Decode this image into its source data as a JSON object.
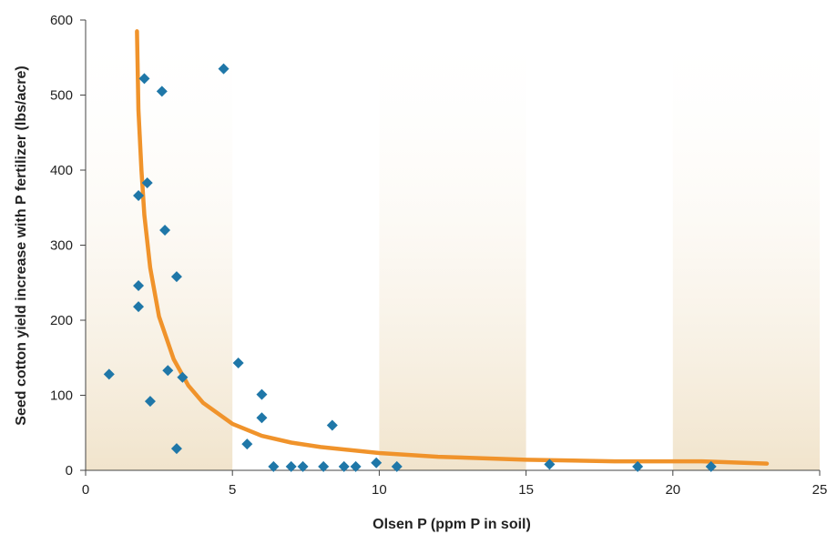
{
  "chart_data": {
    "type": "scatter",
    "xlabel": "Olsen P (ppm P in soil)",
    "ylabel": "Seed cotton yield increase with P fertilizer (lbs/acre)",
    "xlim": [
      0,
      25
    ],
    "ylim": [
      0,
      600
    ],
    "xticks": [
      0,
      5,
      10,
      15,
      20,
      25
    ],
    "yticks": [
      0,
      100,
      200,
      300,
      400,
      500,
      600
    ],
    "grid": false,
    "background_bands": "alternating beige and white vertical bands every 5 ppm",
    "colors": {
      "points": "#1f77a8",
      "curve": "#f0932b",
      "band": "#f1e7d6",
      "axis": "#444444"
    },
    "points": [
      {
        "x": 0.8,
        "y": 128
      },
      {
        "x": 1.8,
        "y": 366
      },
      {
        "x": 1.8,
        "y": 246
      },
      {
        "x": 1.8,
        "y": 218
      },
      {
        "x": 2.0,
        "y": 522
      },
      {
        "x": 2.1,
        "y": 383
      },
      {
        "x": 2.2,
        "y": 92
      },
      {
        "x": 2.6,
        "y": 505
      },
      {
        "x": 2.7,
        "y": 320
      },
      {
        "x": 2.8,
        "y": 133
      },
      {
        "x": 3.1,
        "y": 258
      },
      {
        "x": 3.1,
        "y": 29
      },
      {
        "x": 3.3,
        "y": 124
      },
      {
        "x": 4.7,
        "y": 535
      },
      {
        "x": 5.2,
        "y": 143
      },
      {
        "x": 5.5,
        "y": 35
      },
      {
        "x": 6.0,
        "y": 101
      },
      {
        "x": 6.0,
        "y": 70
      },
      {
        "x": 6.4,
        "y": 5
      },
      {
        "x": 7.0,
        "y": 5
      },
      {
        "x": 7.4,
        "y": 5
      },
      {
        "x": 8.1,
        "y": 5
      },
      {
        "x": 8.4,
        "y": 60
      },
      {
        "x": 8.8,
        "y": 5
      },
      {
        "x": 9.2,
        "y": 5
      },
      {
        "x": 9.9,
        "y": 10
      },
      {
        "x": 10.6,
        "y": 5
      },
      {
        "x": 15.8,
        "y": 8
      },
      {
        "x": 18.8,
        "y": 5
      },
      {
        "x": 21.3,
        "y": 5
      }
    ],
    "curve": [
      {
        "x": 1.75,
        "y": 585
      },
      {
        "x": 1.8,
        "y": 480
      },
      {
        "x": 1.9,
        "y": 400
      },
      {
        "x": 2.0,
        "y": 340
      },
      {
        "x": 2.2,
        "y": 270
      },
      {
        "x": 2.5,
        "y": 205
      },
      {
        "x": 3.0,
        "y": 148
      },
      {
        "x": 3.5,
        "y": 113
      },
      {
        "x": 4.0,
        "y": 90
      },
      {
        "x": 5.0,
        "y": 62
      },
      {
        "x": 6.0,
        "y": 46
      },
      {
        "x": 7.0,
        "y": 37
      },
      {
        "x": 8.0,
        "y": 31
      },
      {
        "x": 10.0,
        "y": 23
      },
      {
        "x": 12.0,
        "y": 18
      },
      {
        "x": 15.0,
        "y": 14
      },
      {
        "x": 18.0,
        "y": 12
      },
      {
        "x": 21.0,
        "y": 12
      },
      {
        "x": 23.2,
        "y": 9
      }
    ]
  }
}
